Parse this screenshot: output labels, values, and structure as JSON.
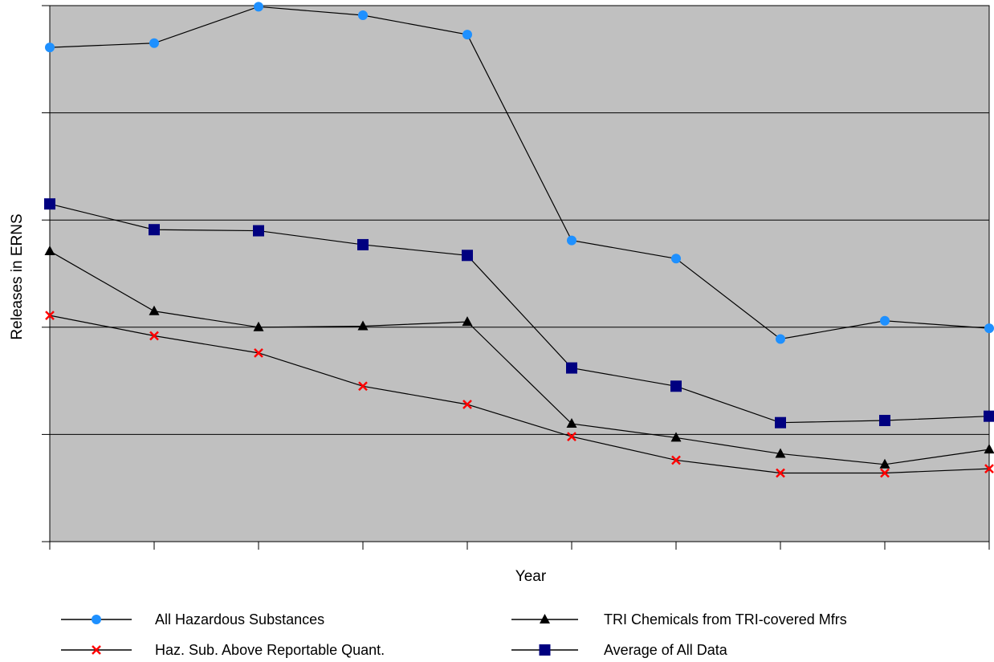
{
  "chart_data": {
    "type": "line",
    "title": "",
    "xlabel": "Year",
    "ylabel": "Releases in ERNS",
    "x_tick_labels": [],
    "y_tick_labels": [],
    "grid": "horizontal",
    "legend_placement": "bottom",
    "plot_background": "#c0c0c0",
    "ylim": [
      0,
      5
    ],
    "x": [
      1,
      2,
      3,
      4,
      5,
      6,
      7,
      8,
      9,
      10
    ],
    "series": [
      {
        "name": "All Hazardous Substances",
        "marker": "circle",
        "color": "#1e90ff",
        "values": [
          4.61,
          4.65,
          4.99,
          4.91,
          4.73,
          2.81,
          2.64,
          1.89,
          2.06,
          1.99
        ]
      },
      {
        "name": "TRI Chemicals from TRI-covered Mfrs",
        "marker": "triangle",
        "color": "#000000",
        "values": [
          2.71,
          2.15,
          2.0,
          2.01,
          2.05,
          1.1,
          0.97,
          0.82,
          0.72,
          0.86
        ]
      },
      {
        "name": "Haz. Sub. Above Reportable Quant.",
        "marker": "x",
        "color": "#ff0000",
        "values": [
          2.11,
          1.92,
          1.76,
          1.45,
          1.28,
          0.98,
          0.76,
          0.64,
          0.64,
          0.68
        ]
      },
      {
        "name": "Average of All Data",
        "marker": "square",
        "color": "#000080",
        "values": [
          3.15,
          2.91,
          2.9,
          2.77,
          2.67,
          1.62,
          1.45,
          1.11,
          1.13,
          1.17
        ]
      }
    ]
  }
}
